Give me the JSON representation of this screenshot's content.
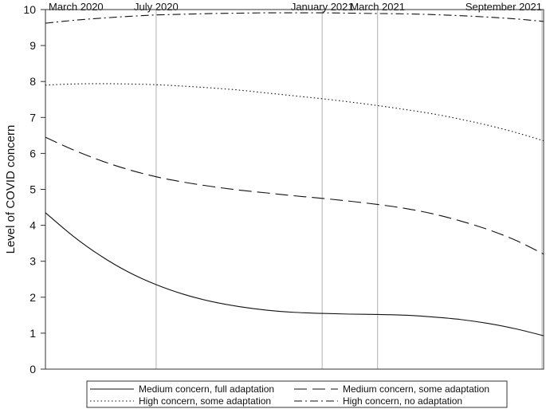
{
  "chart_data": {
    "type": "line",
    "ylabel": "Level of COVID concern",
    "ylim": [
      0,
      10
    ],
    "yticks": [
      0,
      1,
      2,
      3,
      4,
      5,
      6,
      7,
      8,
      9,
      10
    ],
    "xlim": [
      0,
      18
    ],
    "reference_lines": [
      {
        "x": 0,
        "label": "March 2020"
      },
      {
        "x": 4,
        "label": "July 2020"
      },
      {
        "x": 10,
        "label": "January 2021"
      },
      {
        "x": 12,
        "label": "March 2021"
      },
      {
        "x": 18,
        "label": "September 2021"
      }
    ],
    "grid": false,
    "legend_position": "bottom",
    "series": [
      {
        "name": "Medium concern, full adaptation",
        "style": "solid",
        "x": [
          0,
          1,
          2,
          3,
          4,
          5,
          6,
          7,
          8,
          9,
          10,
          11,
          12,
          13,
          14,
          15,
          16,
          17,
          18
        ],
        "y": [
          4.35,
          3.7,
          3.15,
          2.7,
          2.35,
          2.08,
          1.88,
          1.74,
          1.64,
          1.58,
          1.55,
          1.53,
          1.52,
          1.5,
          1.45,
          1.38,
          1.27,
          1.12,
          0.93
        ]
      },
      {
        "name": "Medium concern, some adaptation",
        "style": "dashed",
        "x": [
          0,
          1,
          2,
          3,
          4,
          5,
          6,
          7,
          8,
          9,
          10,
          11,
          12,
          13,
          14,
          15,
          16,
          17,
          18
        ],
        "y": [
          6.45,
          6.1,
          5.8,
          5.55,
          5.35,
          5.2,
          5.08,
          4.98,
          4.9,
          4.82,
          4.75,
          4.67,
          4.58,
          4.47,
          4.32,
          4.12,
          3.88,
          3.58,
          3.2
        ]
      },
      {
        "name": "High concern, some adaptation",
        "style": "dotted",
        "x": [
          0,
          1,
          2,
          3,
          4,
          5,
          6,
          7,
          8,
          9,
          10,
          11,
          12,
          13,
          14,
          15,
          16,
          17,
          18
        ],
        "y": [
          7.9,
          7.93,
          7.94,
          7.93,
          7.91,
          7.87,
          7.82,
          7.76,
          7.68,
          7.6,
          7.52,
          7.43,
          7.33,
          7.22,
          7.1,
          6.95,
          6.78,
          6.58,
          6.35
        ]
      },
      {
        "name": "High concern, no adaptation",
        "style": "dashdot",
        "x": [
          0,
          1,
          2,
          3,
          4,
          5,
          6,
          7,
          8,
          9,
          10,
          11,
          12,
          13,
          14,
          15,
          16,
          17,
          18
        ],
        "y": [
          9.62,
          9.7,
          9.76,
          9.81,
          9.85,
          9.87,
          9.89,
          9.9,
          9.91,
          9.91,
          9.91,
          9.9,
          9.89,
          9.88,
          9.86,
          9.83,
          9.79,
          9.74,
          9.67
        ]
      }
    ]
  }
}
